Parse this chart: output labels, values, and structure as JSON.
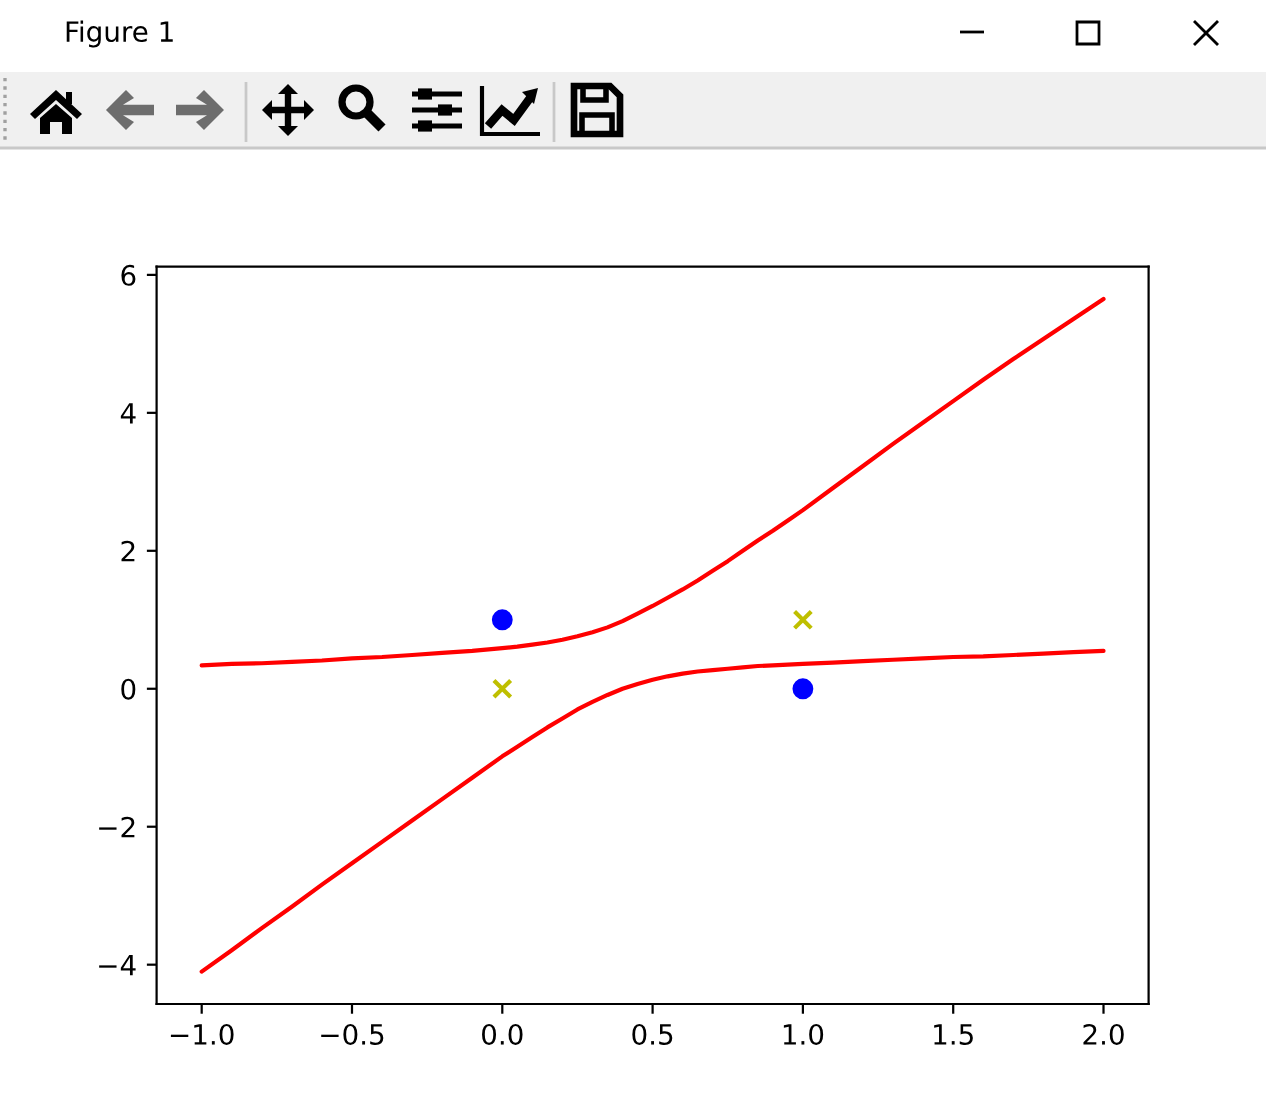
{
  "chart_data": {
    "type": "line",
    "annotations": [
      "Figure 1"
    ],
    "xlim": [
      -1.15,
      2.15
    ],
    "xticks": [
      {
        "value": -1.0,
        "label": "−1.0"
      },
      {
        "value": -0.5,
        "label": "−0.5"
      },
      {
        "value": 0,
        "label": "0.0"
      },
      {
        "value": 0.5,
        "label": "0.5"
      },
      {
        "value": 1,
        "label": "1.0"
      },
      {
        "value": 1.5,
        "label": "1.5"
      },
      {
        "value": 2,
        "label": "2.0"
      }
    ],
    "ylim": [
      -4.57,
      6.12
    ],
    "yticks": [
      {
        "value": -4,
        "label": "−4"
      },
      {
        "value": -2,
        "label": "−2"
      },
      0,
      2,
      4,
      6
    ],
    "grid": false,
    "series": [
      {
        "color": "#ff0000",
        "line_style": "solid",
        "x": [
          -1.0,
          -0.9,
          -0.8,
          -0.7,
          -0.6,
          -0.5,
          -0.4,
          -0.3,
          -0.2,
          -0.1,
          0.0,
          0.05,
          0.1,
          0.15,
          0.2,
          0.25,
          0.3,
          0.35,
          0.4,
          0.45,
          0.5,
          0.55,
          0.6,
          0.65,
          0.7,
          0.75,
          0.8,
          0.85,
          0.9,
          0.95,
          1.0,
          1.1,
          1.2,
          1.3,
          1.4,
          1.5,
          1.6,
          1.7,
          1.8,
          1.9,
          2.0
        ],
        "values": [
          0.34,
          0.36,
          0.37,
          0.39,
          0.41,
          0.44,
          0.46,
          0.49,
          0.52,
          0.55,
          0.59,
          0.61,
          0.64,
          0.67,
          0.71,
          0.76,
          0.82,
          0.89,
          0.98,
          1.09,
          1.2,
          1.32,
          1.44,
          1.57,
          1.71,
          1.85,
          2.0,
          2.15,
          2.29,
          2.44,
          2.59,
          2.91,
          3.23,
          3.55,
          3.86,
          4.17,
          4.48,
          4.78,
          5.07,
          5.36,
          5.65
        ]
      },
      {
        "color": "#ff0000",
        "line_style": "solid",
        "x": [
          -1.0,
          -0.9,
          -0.8,
          -0.7,
          -0.6,
          -0.5,
          -0.4,
          -0.3,
          -0.2,
          -0.1,
          0.0,
          0.05,
          0.1,
          0.15,
          0.2,
          0.25,
          0.3,
          0.35,
          0.4,
          0.45,
          0.5,
          0.55,
          0.6,
          0.65,
          0.7,
          0.75,
          0.8,
          0.85,
          0.9,
          0.95,
          1.0,
          1.1,
          1.2,
          1.3,
          1.4,
          1.5,
          1.6,
          1.7,
          1.8,
          1.9,
          2.0
        ],
        "values": [
          -4.1,
          -3.79,
          -3.47,
          -3.16,
          -2.84,
          -2.53,
          -2.22,
          -1.91,
          -1.6,
          -1.29,
          -0.98,
          -0.84,
          -0.7,
          -0.56,
          -0.43,
          -0.3,
          -0.19,
          -0.09,
          0.0,
          0.07,
          0.13,
          0.18,
          0.22,
          0.25,
          0.27,
          0.29,
          0.31,
          0.33,
          0.34,
          0.35,
          0.36,
          0.38,
          0.4,
          0.42,
          0.44,
          0.46,
          0.47,
          0.49,
          0.51,
          0.53,
          0.55
        ]
      },
      {
        "type": "scatter",
        "color": "#0000ff",
        "marker": "circle",
        "x": [
          0,
          1
        ],
        "values": [
          1,
          0
        ]
      },
      {
        "type": "scatter",
        "color": "#bfbf00",
        "marker": "cross",
        "x": [
          0,
          1
        ],
        "values": [
          0,
          1
        ]
      }
    ]
  }
}
